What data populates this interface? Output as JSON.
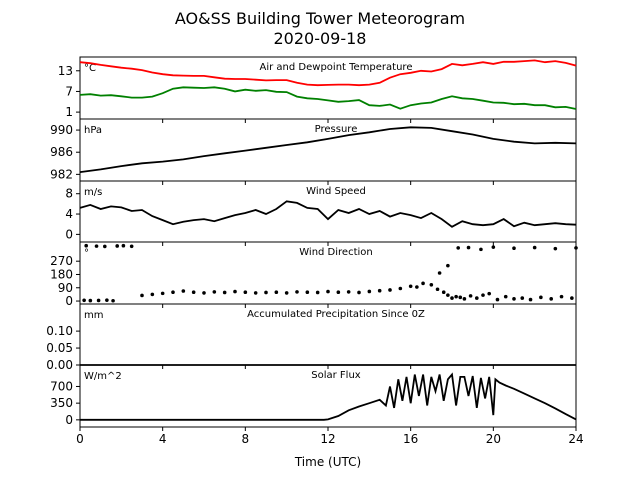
{
  "figure": {
    "title_line1": "AO&SS Building Tower Meteorogram",
    "title_line2": "2020-09-18",
    "xlabel": "Time (UTC)"
  },
  "chart_data": [
    {
      "type": "line",
      "title": "Air and Dewpoint Temperature",
      "unit": "°C",
      "ylim": [
        -1,
        17
      ],
      "yticks": [
        1,
        7,
        13
      ],
      "xlim": [
        0,
        24
      ],
      "series": [
        {
          "color": "#ff0000",
          "x": [
            0,
            0.5,
            1,
            1.5,
            2,
            2.5,
            3,
            3.5,
            4,
            4.5,
            5,
            5.5,
            6,
            6.5,
            7,
            7.5,
            8,
            8.5,
            9,
            9.5,
            10,
            10.5,
            11,
            11.5,
            12,
            12.5,
            13,
            13.5,
            14,
            14.5,
            15,
            15.5,
            16,
            16.5,
            17,
            17.5,
            18,
            18.5,
            19,
            19.5,
            20,
            20.5,
            21,
            21.5,
            22,
            22.5,
            23,
            23.5,
            24
          ],
          "y": [
            15.5,
            15.2,
            14.7,
            14.3,
            13.9,
            13.6,
            13.2,
            12.5,
            12.0,
            11.7,
            11.6,
            11.5,
            11.5,
            11.1,
            10.7,
            10.6,
            10.6,
            10.4,
            10.2,
            10.3,
            10.3,
            9.5,
            9.0,
            8.8,
            8.9,
            9.0,
            9.0,
            8.8,
            9.0,
            9.5,
            11.0,
            12.0,
            12.4,
            13.0,
            12.8,
            13.5,
            15.0,
            14.6,
            15.0,
            15.5,
            15.0,
            15.6,
            15.6,
            15.8,
            16.0,
            15.5,
            15.8,
            15.3,
            14.5
          ]
        },
        {
          "color": "#008000",
          "x": [
            0,
            0.5,
            1,
            1.5,
            2,
            2.5,
            3,
            3.5,
            4,
            4.5,
            5,
            5.5,
            6,
            6.5,
            7,
            7.5,
            8,
            8.5,
            9,
            9.5,
            10,
            10.5,
            11,
            11.5,
            12,
            12.5,
            13,
            13.5,
            14,
            14.5,
            15,
            15.5,
            16,
            16.5,
            17,
            17.5,
            18,
            18.5,
            19,
            19.5,
            20,
            20.5,
            21,
            21.5,
            22,
            22.5,
            23,
            23.5,
            24
          ],
          "y": [
            6.0,
            6.2,
            5.8,
            5.9,
            5.6,
            5.2,
            5.2,
            5.5,
            6.5,
            7.8,
            8.2,
            8.1,
            8.0,
            8.2,
            7.8,
            7.0,
            7.5,
            7.2,
            7.4,
            6.9,
            6.8,
            5.5,
            5.0,
            4.8,
            4.4,
            4.0,
            4.2,
            4.5,
            3.0,
            2.8,
            3.2,
            2.0,
            3.0,
            3.5,
            3.8,
            4.8,
            5.6,
            5.0,
            4.8,
            4.3,
            3.8,
            3.7,
            3.3,
            3.4,
            3.0,
            3.0,
            2.4,
            2.5,
            1.9
          ]
        }
      ]
    },
    {
      "type": "line",
      "title": "Pressure",
      "unit": "hPa",
      "ylim": [
        980.8,
        992.0
      ],
      "yticks": [
        982,
        986,
        990
      ],
      "xlim": [
        0,
        24
      ],
      "series": [
        {
          "color": "#000000",
          "x": [
            0,
            1,
            2,
            3,
            4,
            5,
            6,
            7,
            8,
            9,
            10,
            11,
            12,
            13,
            14,
            15,
            16,
            17,
            18,
            19,
            20,
            21,
            22,
            23,
            24
          ],
          "y": [
            982.4,
            982.9,
            983.5,
            984.0,
            984.3,
            984.7,
            985.3,
            985.8,
            986.3,
            986.8,
            987.3,
            987.8,
            988.4,
            989.1,
            989.6,
            990.2,
            990.5,
            990.4,
            989.8,
            989.2,
            988.4,
            987.9,
            987.6,
            987.7,
            987.6
          ]
        }
      ]
    },
    {
      "type": "line",
      "title": "Wind Speed",
      "unit": "m/s",
      "ylim": [
        -1.5,
        10.5
      ],
      "yticks": [
        0,
        4,
        8
      ],
      "xlim": [
        0,
        24
      ],
      "series": [
        {
          "color": "#000000",
          "x": [
            0,
            0.5,
            1,
            1.5,
            2,
            2.5,
            3,
            3.5,
            4,
            4.5,
            5,
            5.5,
            6,
            6.5,
            7,
            7.5,
            8,
            8.5,
            9,
            9.5,
            10,
            10.5,
            11,
            11.5,
            12,
            12.5,
            13,
            13.5,
            14,
            14.5,
            15,
            15.5,
            16,
            16.5,
            17,
            17.5,
            18,
            18.5,
            19,
            19.5,
            20,
            20.5,
            21,
            21.5,
            22,
            22.5,
            23,
            23.5,
            24
          ],
          "y": [
            5.2,
            5.8,
            5.0,
            5.5,
            5.3,
            4.6,
            4.8,
            3.6,
            2.8,
            2.0,
            2.5,
            2.8,
            3.0,
            2.6,
            3.2,
            3.8,
            4.2,
            4.8,
            4.0,
            5.0,
            6.5,
            6.2,
            5.2,
            5.0,
            3.0,
            4.8,
            4.2,
            5.0,
            4.0,
            4.6,
            3.5,
            4.2,
            3.8,
            3.2,
            4.2,
            3.0,
            1.5,
            2.6,
            2.0,
            1.8,
            2.0,
            3.0,
            1.6,
            2.3,
            1.8,
            2.0,
            2.2,
            2.0,
            1.9
          ]
        }
      ]
    },
    {
      "type": "scatter",
      "title": "Wind Direction",
      "unit": "°",
      "ylim": [
        -20,
        400
      ],
      "yticks": [
        0,
        90,
        180,
        270
      ],
      "xlim": [
        0,
        24
      ],
      "series": [
        {
          "color": "#000000",
          "x": [
            0.2,
            0.5,
            0.9,
            1.3,
            1.6,
            0.3,
            0.8,
            1.2,
            1.8,
            2.1,
            2.5,
            3.0,
            3.5,
            4.0,
            4.5,
            5.0,
            5.5,
            6.0,
            6.5,
            7.0,
            7.5,
            8.0,
            8.5,
            9.0,
            9.5,
            10.0,
            10.5,
            11.0,
            11.5,
            12.0,
            12.5,
            13.0,
            13.5,
            14.0,
            14.5,
            15.0,
            15.5,
            16.0,
            16.3,
            16.6,
            17.0,
            17.3,
            17.6,
            17.8,
            18.0,
            18.2,
            18.4,
            18.6,
            18.9,
            19.2,
            19.5,
            19.8,
            20.2,
            20.6,
            21.0,
            21.4,
            21.8,
            22.3,
            22.8,
            23.3,
            23.8,
            18.3,
            18.8,
            19.4,
            20.0,
            21.0,
            22.0,
            23.0,
            24.0,
            17.8,
            17.4
          ],
          "y": [
            5,
            3,
            4,
            6,
            2,
            375,
            372,
            370,
            373,
            375,
            371,
            38,
            45,
            52,
            60,
            68,
            60,
            55,
            62,
            58,
            64,
            60,
            55,
            58,
            60,
            55,
            62,
            60,
            58,
            64,
            60,
            62,
            58,
            65,
            70,
            75,
            85,
            100,
            95,
            120,
            110,
            80,
            60,
            40,
            20,
            30,
            25,
            15,
            35,
            20,
            40,
            50,
            10,
            30,
            15,
            20,
            10,
            25,
            15,
            30,
            20,
            360,
            362,
            350,
            365,
            358,
            362,
            355,
            360,
            240,
            190
          ]
        }
      ]
    },
    {
      "type": "line",
      "title": "Accumulated Precipitation Since 0Z",
      "unit": "mm",
      "ylim": [
        0.0,
        0.18
      ],
      "yticks": [
        0.0,
        0.05,
        0.1
      ],
      "ytick_labels": [
        "0.00",
        "0.05",
        "0.10"
      ],
      "xlim": [
        0,
        24
      ],
      "series": [
        {
          "color": "#000000",
          "x": [
            0,
            24
          ],
          "y": [
            0.0,
            0.0
          ]
        }
      ]
    },
    {
      "type": "line",
      "title": "Solar Flux",
      "unit": "W/m^2",
      "ylim": [
        -150,
        1150
      ],
      "yticks": [
        0,
        350,
        700
      ],
      "xlim": [
        0,
        24
      ],
      "series": [
        {
          "color": "#000000",
          "x": [
            0,
            11.8,
            12.0,
            12.5,
            13.0,
            13.5,
            14.0,
            14.5,
            14.8,
            15.0,
            15.2,
            15.4,
            15.6,
            15.8,
            16.0,
            16.2,
            16.4,
            16.6,
            16.8,
            17.0,
            17.2,
            17.4,
            17.6,
            17.8,
            18.0,
            18.2,
            18.4,
            18.6,
            18.8,
            19.0,
            19.2,
            19.4,
            19.6,
            19.8,
            20.0,
            20.1,
            20.3,
            20.6,
            21.0,
            21.5,
            22.0,
            22.5,
            23.0,
            23.5,
            24.0
          ],
          "y": [
            0,
            0,
            10,
            80,
            200,
            280,
            350,
            420,
            300,
            700,
            250,
            850,
            400,
            900,
            350,
            950,
            500,
            950,
            300,
            900,
            600,
            950,
            400,
            850,
            950,
            300,
            900,
            900,
            500,
            920,
            250,
            880,
            450,
            900,
            100,
            850,
            780,
            720,
            650,
            550,
            450,
            350,
            240,
            120,
            10
          ]
        }
      ]
    }
  ],
  "x_axis": {
    "ticks": [
      0,
      4,
      8,
      12,
      16,
      20,
      24
    ],
    "tick_labels": [
      "0",
      "4",
      "8",
      "12",
      "16",
      "20",
      "24"
    ]
  }
}
